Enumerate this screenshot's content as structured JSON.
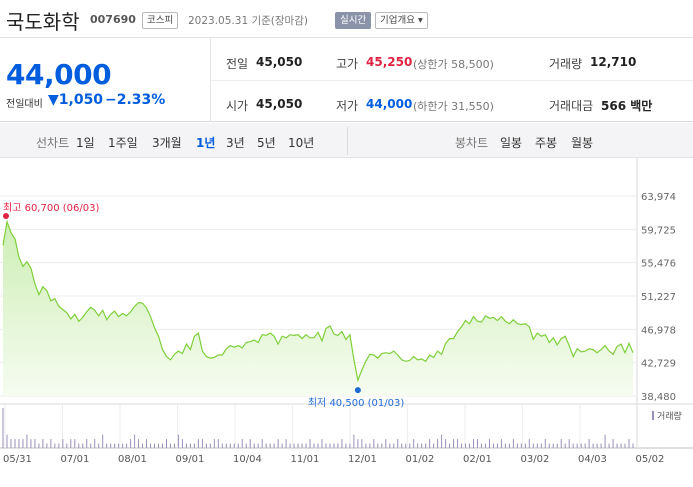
{
  "header": {
    "company_name": "국도화학",
    "code": "007690",
    "market": "코스피",
    "date": "2023.05.31  기준(장마감)",
    "realtime": "실시간",
    "overview": "기업개요 ▾"
  },
  "quote": {
    "price": "44,000",
    "change_label": "전일대비",
    "change_value": "▼1,050",
    "change_pct": "−2.33%"
  },
  "stats": {
    "prev_close_label": "전일",
    "prev_close": "45,050",
    "high_label": "고가",
    "high": "45,250",
    "upper_limit": "(상한가 58,500)",
    "volume_label": "거래량",
    "volume": "12,710",
    "open_label": "시가",
    "open": "45,050",
    "low_label": "저가",
    "low": "44,000",
    "lower_limit": "(하한가 31,550)",
    "amount_label": "거래대금",
    "amount": "566 백만"
  },
  "period_bar": {
    "line_label": "선차트",
    "line_periods": [
      "1일",
      "1주일",
      "3개월",
      "1년",
      "3년",
      "5년",
      "10년"
    ],
    "active_period": "1년",
    "candle_label": "봉차트",
    "candle_periods": [
      "일봉",
      "주봉",
      "월봉"
    ]
  },
  "chart_data": {
    "type": "area",
    "title": "",
    "y_ticks": [
      63974,
      59725,
      55476,
      51227,
      46978,
      42729,
      38480
    ],
    "y_tick_labels": [
      "63,974",
      "59,725",
      "55,476",
      "51,227",
      "46,978",
      "42,729",
      "38,480"
    ],
    "ylim": [
      38480,
      63974
    ],
    "x_tick_labels": [
      "05/31",
      "07/01",
      "08/01",
      "09/01",
      "10/04",
      "11/01",
      "12/01",
      "01/02",
      "02/01",
      "03/02",
      "04/03",
      "05/02"
    ],
    "max_annotation": "최고 60,700 (06/03)",
    "min_annotation": "최저 40,500 (01/03)",
    "volume_legend": "거래량",
    "series": [
      {
        "values": [
          57700,
          60700,
          59300,
          58500,
          56200,
          55000,
          55600,
          54800,
          52800,
          51400,
          52400,
          51900,
          50600,
          50900,
          49900,
          49500,
          49100,
          48300,
          48900,
          48000,
          48500,
          49200,
          49800,
          49400,
          48700,
          49400,
          48200,
          48900,
          49300,
          48600,
          49000,
          48700,
          49200,
          49900,
          50400,
          50300,
          49700,
          48600,
          47200,
          46100,
          44400,
          43500,
          43100,
          43800,
          44200,
          43900,
          45100,
          44400,
          46100,
          46500,
          44200,
          43500,
          43300,
          43400,
          43700,
          43700,
          44500,
          44900,
          44700,
          44900,
          44600,
          45300,
          45400,
          45600,
          45300,
          46300,
          46200,
          46500,
          46100,
          45100,
          46100,
          45900,
          46300,
          46200,
          46300,
          45800,
          46300,
          45900,
          45900,
          46600,
          45500,
          47100,
          47400,
          46400,
          46200,
          46700,
          45700,
          46300,
          43100,
          40500,
          41800,
          42900,
          43800,
          43700,
          43300,
          43900,
          44000,
          43900,
          44200,
          43700,
          43100,
          42900,
          43000,
          43500,
          43100,
          43200,
          42900,
          43700,
          43400,
          44200,
          43800,
          45200,
          45800,
          45800,
          46700,
          47300,
          48100,
          47700,
          48600,
          48000,
          47900,
          48700,
          48400,
          48500,
          48100,
          48600,
          48000,
          47700,
          48200,
          47700,
          47600,
          47700,
          47300,
          45700,
          46500,
          46100,
          46300,
          45300,
          45900,
          45000,
          45800,
          46100,
          44900,
          43500,
          44500,
          44100,
          44200,
          44500,
          44400,
          44000,
          44400,
          44900,
          44200,
          43800,
          44800,
          45100,
          44000,
          45200,
          44000
        ]
      }
    ],
    "volume": [
      9,
      3,
      2,
      2,
      2,
      2,
      3,
      2,
      2,
      1,
      2,
      1,
      2,
      1,
      1,
      2,
      1,
      2,
      2,
      1,
      1,
      2,
      1,
      2,
      1,
      3,
      1,
      1,
      1,
      1,
      1,
      1,
      2,
      3,
      2,
      1,
      2,
      1,
      1,
      1,
      1,
      2,
      1,
      1,
      3,
      2,
      1,
      1,
      1,
      2,
      2,
      1,
      1,
      2,
      2,
      1,
      1,
      1,
      1,
      1,
      2,
      1,
      2,
      1,
      1,
      2,
      1,
      1,
      1,
      2,
      1,
      2,
      1,
      1,
      1,
      1,
      1,
      2,
      1,
      1,
      2,
      1,
      1,
      1,
      1,
      2,
      1,
      1,
      3,
      2,
      2,
      1,
      1,
      2,
      1,
      1,
      2,
      1,
      1,
      2,
      1,
      1,
      1,
      2,
      1,
      1,
      1,
      2,
      1,
      2,
      3,
      2,
      1,
      2,
      2,
      1,
      1,
      1,
      2,
      2,
      1,
      1,
      2,
      1,
      1,
      2,
      1,
      1,
      2,
      1,
      1,
      1,
      2,
      1,
      1,
      1,
      2,
      1,
      1,
      1,
      2,
      1,
      2,
      1,
      1,
      1,
      1,
      2,
      1,
      1,
      1,
      3,
      1,
      2,
      1,
      1,
      1,
      2,
      1
    ],
    "grid": true
  }
}
